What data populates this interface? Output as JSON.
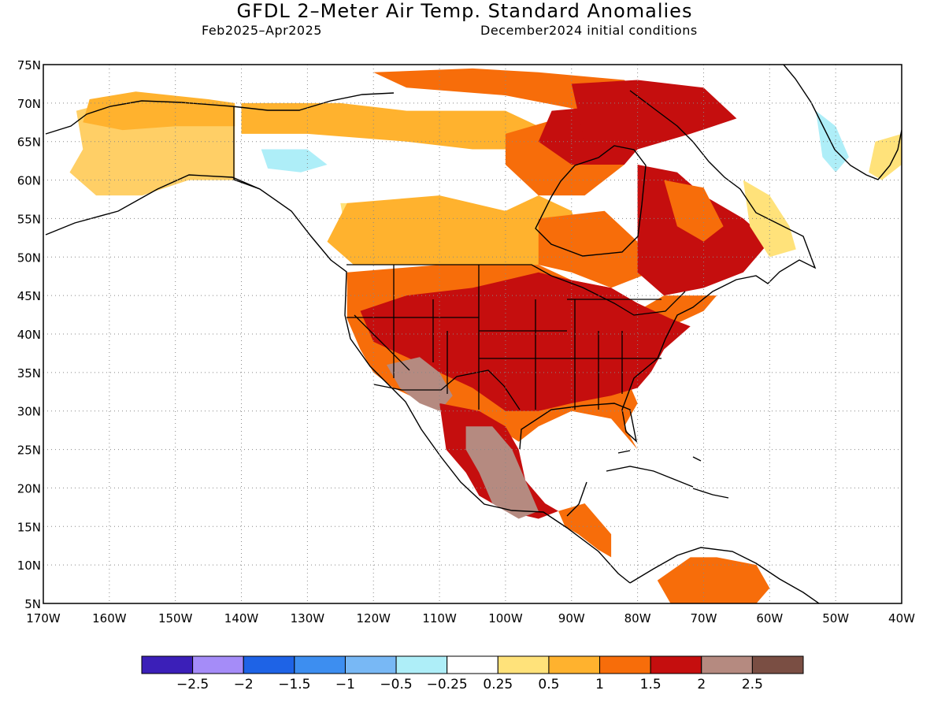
{
  "title": "GFDL 2–Meter Air Temp. Standard Anomalies",
  "subtitle_left": "Feb2025–Apr2025",
  "subtitle_right": "December2024 initial conditions",
  "map": {
    "lon_range": [
      -170,
      -40
    ],
    "lat_range": [
      5,
      75
    ],
    "lat_labels": [
      "5N",
      "10N",
      "15N",
      "20N",
      "25N",
      "30N",
      "35N",
      "40N",
      "45N",
      "50N",
      "55N",
      "60N",
      "65N",
      "70N",
      "75N"
    ],
    "lon_labels": [
      "170W",
      "160W",
      "150W",
      "140W",
      "130W",
      "120W",
      "110W",
      "100W",
      "90W",
      "80W",
      "70W",
      "60W",
      "50W",
      "40W"
    ],
    "grid": "dotted"
  },
  "colorbar": {
    "colors": [
      "#3b1fb8",
      "#a58cf8",
      "#1e63e6",
      "#3d8ef0",
      "#78b8f5",
      "#aeeef8",
      "#ffffff",
      "#ffe27a",
      "#ffb22e",
      "#f76d0a",
      "#c50e0e",
      "#b58a80",
      "#7a4e43"
    ],
    "labels": [
      "−2.5",
      "−2",
      "−1.5",
      "−1",
      "−0.5",
      "−0.25",
      "0.25",
      "0.5",
      "1",
      "1.5",
      "2",
      "2.5"
    ]
  },
  "regions": [
    {
      "name": "alaska",
      "color": "#ffcf66",
      "points": [
        [
          -165,
          69
        ],
        [
          -156,
          71
        ],
        [
          -145,
          70
        ],
        [
          -141,
          69.5
        ],
        [
          -141,
          60
        ],
        [
          -148,
          60
        ],
        [
          -155,
          58
        ],
        [
          -162,
          58
        ],
        [
          -166,
          61
        ],
        [
          -164,
          64
        ]
      ]
    },
    {
      "name": "alaska-north",
      "color": "#ffb22e",
      "points": [
        [
          -163,
          70.5
        ],
        [
          -156,
          71.5
        ],
        [
          -145,
          70.5
        ],
        [
          -141,
          70
        ],
        [
          -141,
          67
        ],
        [
          -150,
          67
        ],
        [
          -158,
          66.5
        ],
        [
          -164,
          67.5
        ]
      ]
    },
    {
      "name": "yukon-cold",
      "color": "#aeeef8",
      "points": [
        [
          -137,
          64
        ],
        [
          -130,
          64
        ],
        [
          -127,
          62
        ],
        [
          -131,
          61
        ],
        [
          -136,
          61.5
        ]
      ]
    },
    {
      "name": "canada-north-orange",
      "color": "#ffb22e",
      "points": [
        [
          -140,
          70
        ],
        [
          -125,
          70
        ],
        [
          -115,
          69
        ],
        [
          -100,
          69
        ],
        [
          -95,
          67
        ],
        [
          -97,
          64
        ],
        [
          -105,
          64
        ],
        [
          -115,
          65
        ],
        [
          -130,
          66
        ],
        [
          -140,
          66
        ]
      ]
    },
    {
      "name": "arctic-islands",
      "color": "#f76d0a",
      "points": [
        [
          -120,
          74
        ],
        [
          -105,
          74.5
        ],
        [
          -95,
          74
        ],
        [
          -82,
          73
        ],
        [
          -78,
          70
        ],
        [
          -88,
          69
        ],
        [
          -100,
          71
        ],
        [
          -115,
          72
        ]
      ]
    },
    {
      "name": "prairies-yellow",
      "color": "#ffe27a",
      "points": [
        [
          -125,
          57
        ],
        [
          -110,
          57
        ],
        [
          -100,
          55
        ],
        [
          -95,
          55
        ],
        [
          -95,
          51
        ],
        [
          -105,
          50
        ],
        [
          -115,
          50
        ],
        [
          -124,
          52
        ]
      ]
    },
    {
      "name": "canada-mid-orange",
      "color": "#ffb22e",
      "points": [
        [
          -127,
          52
        ],
        [
          -124,
          57
        ],
        [
          -110,
          58
        ],
        [
          -100,
          56
        ],
        [
          -95,
          58
        ],
        [
          -90,
          56
        ],
        [
          -88,
          51
        ],
        [
          -95,
          49
        ],
        [
          -110,
          49
        ],
        [
          -123,
          49
        ]
      ]
    },
    {
      "name": "hudson-west",
      "color": "#f76d0a",
      "points": [
        [
          -100,
          66
        ],
        [
          -92,
          68
        ],
        [
          -85,
          66
        ],
        [
          -82,
          62
        ],
        [
          -88,
          58
        ],
        [
          -95,
          58
        ],
        [
          -100,
          62
        ]
      ]
    },
    {
      "name": "hudson-red",
      "color": "#c50e0e",
      "points": [
        [
          -93,
          69
        ],
        [
          -80,
          70
        ],
        [
          -78,
          66
        ],
        [
          -82,
          62
        ],
        [
          -90,
          62
        ],
        [
          -95,
          65
        ]
      ]
    },
    {
      "name": "ontario",
      "color": "#f76d0a",
      "points": [
        [
          -95,
          55
        ],
        [
          -85,
          56
        ],
        [
          -80,
          52
        ],
        [
          -78,
          48
        ],
        [
          -84,
          46
        ],
        [
          -90,
          48
        ],
        [
          -95,
          49
        ]
      ]
    },
    {
      "name": "quebec-red",
      "color": "#c50e0e",
      "points": [
        [
          -80,
          62
        ],
        [
          -74,
          61
        ],
        [
          -70,
          58
        ],
        [
          -64,
          55
        ],
        [
          -60,
          52
        ],
        [
          -64,
          48
        ],
        [
          -70,
          46
        ],
        [
          -76,
          45
        ],
        [
          -80,
          48
        ],
        [
          -80,
          55
        ]
      ]
    },
    {
      "name": "quebec-orange",
      "color": "#f76d0a",
      "points": [
        [
          -76,
          60
        ],
        [
          -70,
          59
        ],
        [
          -67,
          54
        ],
        [
          -70,
          52
        ],
        [
          -74,
          54
        ]
      ]
    },
    {
      "name": "labrador-yellow",
      "color": "#ffe27a",
      "points": [
        [
          -64,
          60
        ],
        [
          -60,
          58
        ],
        [
          -57,
          54
        ],
        [
          -56,
          51
        ],
        [
          -60,
          50
        ],
        [
          -63,
          54
        ]
      ]
    },
    {
      "name": "baffin",
      "color": "#c50e0e",
      "points": [
        [
          -90,
          72.5
        ],
        [
          -80,
          73
        ],
        [
          -70,
          72
        ],
        [
          -65,
          68
        ],
        [
          -72,
          66
        ],
        [
          -80,
          64
        ],
        [
          -88,
          65
        ]
      ]
    },
    {
      "name": "greenland-coast",
      "color": "#aeeef8",
      "points": [
        [
          -53,
          69
        ],
        [
          -50,
          67
        ],
        [
          -48,
          63
        ],
        [
          -50,
          61
        ],
        [
          -52,
          63
        ]
      ]
    },
    {
      "name": "greenland-yellow",
      "color": "#ffe27a",
      "points": [
        [
          -44,
          65
        ],
        [
          -40,
          66
        ],
        [
          -40,
          62
        ],
        [
          -43,
          60
        ],
        [
          -45,
          61
        ]
      ]
    },
    {
      "name": "conus-orange",
      "color": "#f76d0a",
      "points": [
        [
          -124,
          48
        ],
        [
          -110,
          49
        ],
        [
          -95,
          49
        ],
        [
          -90,
          47
        ],
        [
          -84,
          46
        ],
        [
          -80,
          43
        ],
        [
          -75,
          41
        ],
        [
          -70,
          43
        ],
        [
          -68,
          45
        ],
        [
          -76,
          45
        ],
        [
          -82,
          42
        ],
        [
          -82,
          35
        ],
        [
          -80,
          31
        ],
        [
          -82,
          28
        ],
        [
          -80,
          25
        ],
        [
          -84,
          29
        ],
        [
          -90,
          30
        ],
        [
          -95,
          28
        ],
        [
          -98,
          26
        ],
        [
          -105,
          30
        ],
        [
          -112,
          31
        ],
        [
          -117,
          33
        ],
        [
          -120,
          35
        ],
        [
          -122,
          38
        ],
        [
          -124,
          42
        ]
      ]
    },
    {
      "name": "conus-red",
      "color": "#c50e0e",
      "points": [
        [
          -122,
          43
        ],
        [
          -115,
          45
        ],
        [
          -105,
          46
        ],
        [
          -95,
          48
        ],
        [
          -90,
          47
        ],
        [
          -84,
          46
        ],
        [
          -80,
          44
        ],
        [
          -75,
          42
        ],
        [
          -72,
          41
        ],
        [
          -76,
          38
        ],
        [
          -78,
          35
        ],
        [
          -80,
          33
        ],
        [
          -84,
          32
        ],
        [
          -90,
          31
        ],
        [
          -95,
          30
        ],
        [
          -100,
          30
        ],
        [
          -105,
          33
        ],
        [
          -110,
          35
        ],
        [
          -115,
          37
        ],
        [
          -120,
          39
        ]
      ]
    },
    {
      "name": "southwest-brown",
      "color": "#b58a80",
      "points": [
        [
          -118,
          36
        ],
        [
          -113,
          37
        ],
        [
          -110,
          35
        ],
        [
          -108,
          32
        ],
        [
          -110,
          30
        ],
        [
          -113,
          31
        ],
        [
          -116,
          33
        ]
      ]
    },
    {
      "name": "mexico-red",
      "color": "#c50e0e",
      "points": [
        [
          -110,
          31
        ],
        [
          -104,
          30
        ],
        [
          -100,
          28
        ],
        [
          -98,
          25
        ],
        [
          -97,
          21
        ],
        [
          -94,
          18
        ],
        [
          -92,
          17
        ],
        [
          -95,
          16
        ],
        [
          -100,
          17
        ],
        [
          -104,
          19
        ],
        [
          -106,
          22
        ],
        [
          -109,
          25
        ]
      ]
    },
    {
      "name": "mexico-brown",
      "color": "#b58a80",
      "points": [
        [
          -106,
          28
        ],
        [
          -102,
          28
        ],
        [
          -99,
          25
        ],
        [
          -97,
          21
        ],
        [
          -95,
          17
        ],
        [
          -98,
          16
        ],
        [
          -102,
          18
        ],
        [
          -104,
          22
        ],
        [
          -106,
          25
        ]
      ]
    },
    {
      "name": "central-america",
      "color": "#f76d0a",
      "points": [
        [
          -92,
          17
        ],
        [
          -88,
          18
        ],
        [
          -86,
          16
        ],
        [
          -84,
          14
        ],
        [
          -84,
          11
        ],
        [
          -86,
          12
        ],
        [
          -89,
          14
        ],
        [
          -91,
          15
        ]
      ]
    },
    {
      "name": "venezuela",
      "color": "#f76d0a",
      "points": [
        [
          -77,
          8
        ],
        [
          -72,
          11
        ],
        [
          -68,
          11
        ],
        [
          -62,
          10
        ],
        [
          -60,
          7
        ],
        [
          -62,
          5
        ],
        [
          -75,
          5
        ]
      ]
    }
  ]
}
